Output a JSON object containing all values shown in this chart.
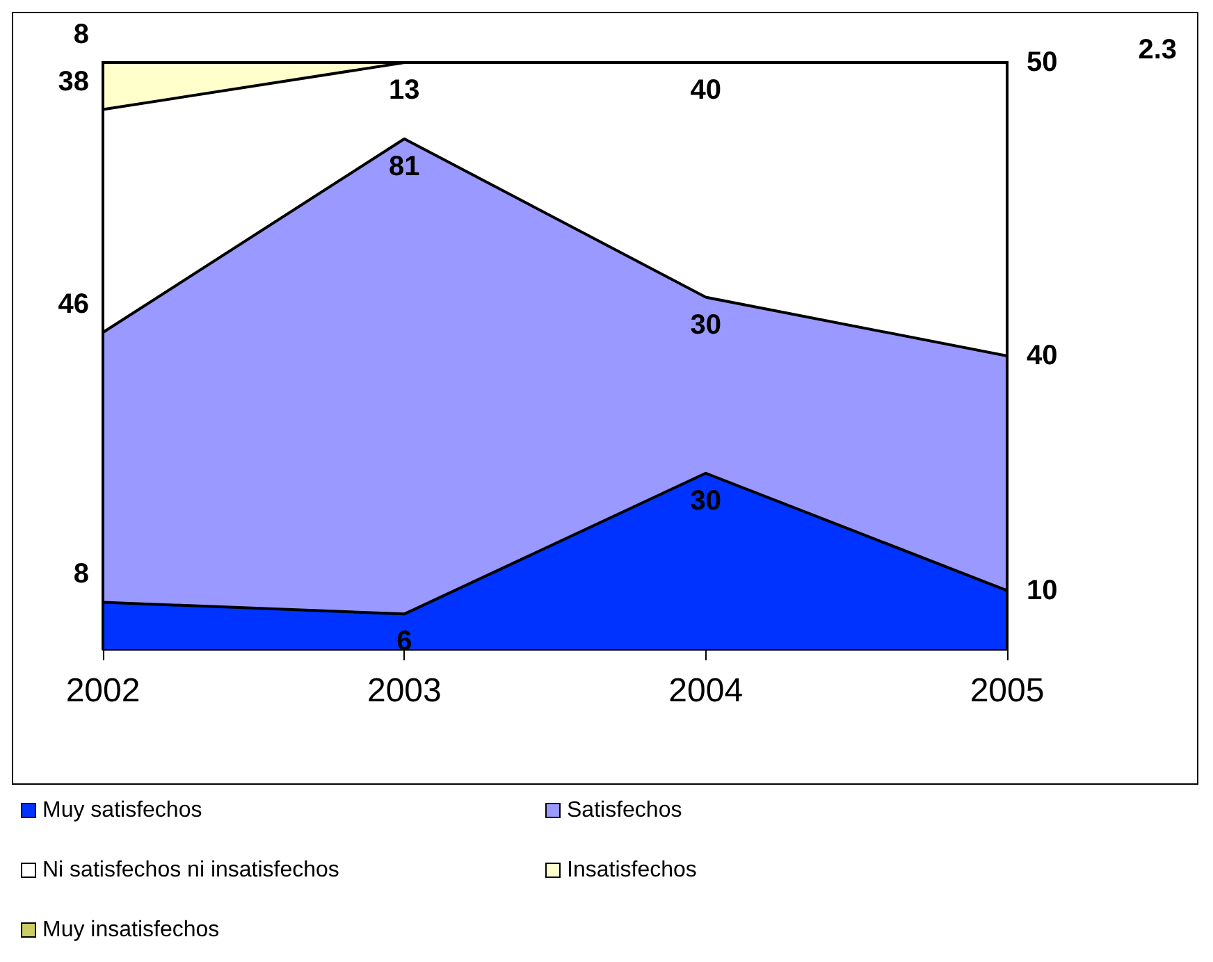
{
  "chart_data": {
    "type": "area",
    "stacked": true,
    "categories": [
      "2002",
      "2003",
      "2004",
      "2005"
    ],
    "series": [
      {
        "name": "Muy satisfechos",
        "color": "#0033ff",
        "values": [
          8,
          6,
          30,
          10
        ],
        "value_labels": [
          "8",
          "6",
          "30",
          "10"
        ]
      },
      {
        "name": "Satisfechos",
        "color": "#9999ff",
        "values": [
          46,
          81,
          30,
          40
        ],
        "value_labels": [
          "46",
          "81",
          "30",
          "40"
        ]
      },
      {
        "name": "Ni satisfechos ni insatisfechos",
        "color": "#ffffff",
        "values": [
          38,
          13,
          40,
          50
        ],
        "value_labels": [
          "38",
          "13",
          "40",
          "50"
        ]
      },
      {
        "name": "Insatisfechos",
        "color": "#ffffcc",
        "values": [
          8,
          0,
          0,
          0
        ],
        "value_labels": [
          "8",
          null,
          null,
          null
        ]
      },
      {
        "name": "Muy insatisfechos",
        "color": "#cccc66",
        "values": [
          null,
          null,
          null,
          null
        ]
      }
    ],
    "annotations": [
      "2.3"
    ],
    "legend": "bottom left"
  }
}
